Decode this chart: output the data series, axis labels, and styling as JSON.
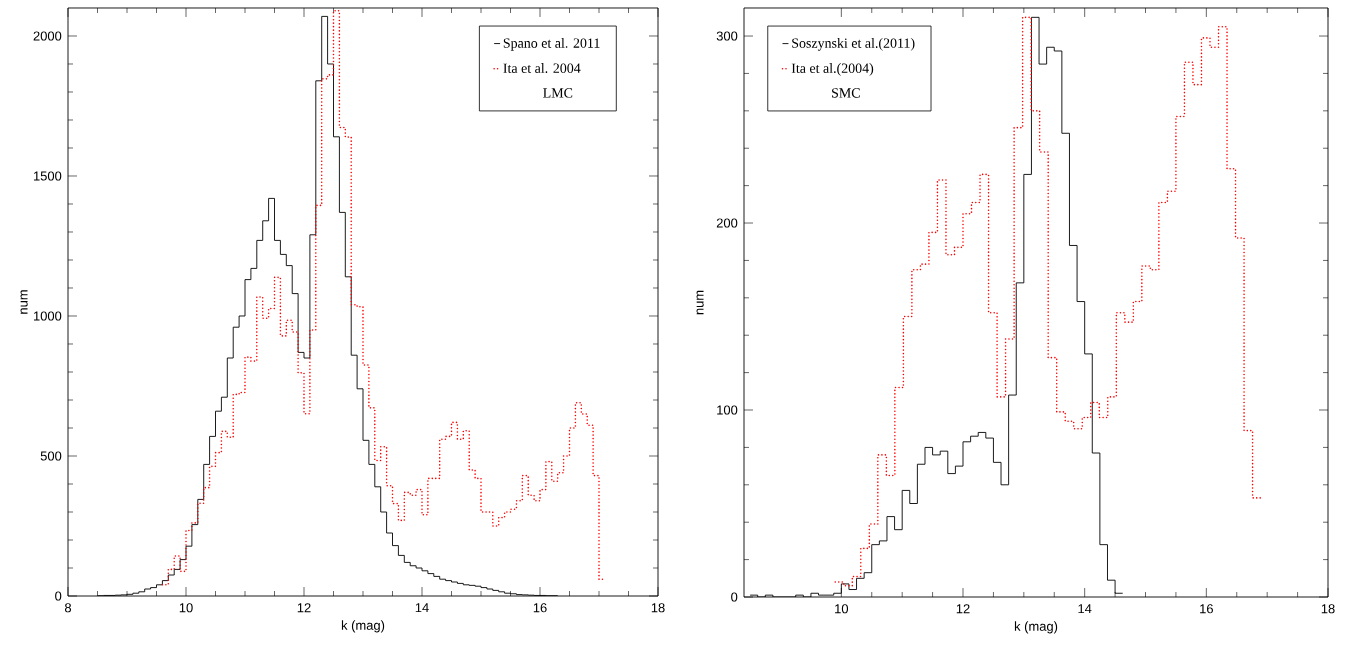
{
  "chart_data": [
    {
      "type": "step",
      "xlabel": "k (mag)",
      "ylabel": "num",
      "xlim": [
        8,
        18
      ],
      "ylim": [
        0,
        2100
      ],
      "xticks": [
        {
          "value": 8,
          "label": "8"
        },
        {
          "value": 10,
          "label": "10"
        },
        {
          "value": 12,
          "label": "12"
        },
        {
          "value": 14,
          "label": "14"
        },
        {
          "value": 16,
          "label": "16"
        },
        {
          "value": 18,
          "label": "18"
        }
      ],
      "yticks": [
        {
          "value": 0,
          "label": "0"
        },
        {
          "value": 500,
          "label": "500"
        },
        {
          "value": 1000,
          "label": "1000"
        },
        {
          "value": 1500,
          "label": "1500"
        },
        {
          "value": 2000,
          "label": "2000"
        }
      ],
      "legend": "top right",
      "annotations": [
        "LMC"
      ],
      "series": [
        {
          "name": "Spano et al. 2011",
          "color": "#000000",
          "line_style": "solid",
          "x": [
            8.5,
            8.6,
            8.7,
            8.8,
            8.9,
            9.0,
            9.1,
            9.2,
            9.3,
            9.4,
            9.5,
            9.6,
            9.7,
            9.8,
            9.9,
            10.0,
            10.1,
            10.2,
            10.3,
            10.4,
            10.5,
            10.6,
            10.7,
            10.8,
            10.9,
            11.0,
            11.1,
            11.2,
            11.3,
            11.4,
            11.5,
            11.6,
            11.7,
            11.8,
            11.9,
            12.0,
            12.1,
            12.2,
            12.3,
            12.4,
            12.5,
            12.6,
            12.7,
            12.8,
            12.9,
            13.0,
            13.1,
            13.2,
            13.3,
            13.4,
            13.5,
            13.6,
            13.7,
            13.8,
            13.9,
            14.0,
            14.1,
            14.2,
            14.3,
            14.4,
            14.5,
            14.6,
            14.7,
            14.8,
            14.9,
            15.0,
            15.1,
            15.2,
            15.3,
            15.4,
            15.5,
            15.6,
            15.7,
            15.8,
            15.9,
            16.0,
            16.1,
            16.2,
            16.3
          ],
          "values": [
            1,
            2,
            2,
            3,
            4,
            6,
            10,
            15,
            25,
            30,
            40,
            55,
            75,
            95,
            130,
            178,
            255,
            345,
            470,
            570,
            660,
            710,
            850,
            960,
            1000,
            1130,
            1170,
            1270,
            1340,
            1420,
            1270,
            1220,
            1180,
            1080,
            870,
            850,
            1290,
            1840,
            2070,
            1900,
            1640,
            1370,
            1140,
            860,
            740,
            556,
            470,
            390,
            300,
            225,
            180,
            145,
            120,
            108,
            100,
            90,
            80,
            70,
            60,
            55,
            50,
            45,
            40,
            38,
            35,
            30,
            25,
            20,
            15,
            10,
            8,
            5,
            4,
            3,
            2,
            2,
            1,
            1,
            1
          ]
        },
        {
          "name": "Ita et al. 2004",
          "color": "#ff0000",
          "line_style": "dotted",
          "x": [
            9.6,
            9.7,
            9.8,
            9.9,
            10.0,
            10.1,
            10.2,
            10.3,
            10.4,
            10.5,
            10.6,
            10.7,
            10.8,
            10.9,
            11.0,
            11.1,
            11.2,
            11.3,
            11.4,
            11.5,
            11.6,
            11.7,
            11.8,
            11.9,
            12.0,
            12.1,
            12.2,
            12.3,
            12.4,
            12.5,
            12.6,
            12.7,
            12.8,
            12.9,
            13.0,
            13.1,
            13.2,
            13.3,
            13.4,
            13.5,
            13.6,
            13.7,
            13.8,
            13.9,
            14.0,
            14.1,
            14.2,
            14.3,
            14.4,
            14.5,
            14.6,
            14.7,
            14.8,
            14.9,
            15.0,
            15.1,
            15.2,
            15.3,
            15.4,
            15.5,
            15.6,
            15.7,
            15.8,
            15.9,
            16.0,
            16.1,
            16.2,
            16.3,
            16.4,
            16.5,
            16.6,
            16.7,
            16.8,
            16.9,
            17.0,
            17.1
          ],
          "values": [
            40,
            95,
            143,
            88,
            234,
            261,
            331,
            387,
            463,
            512,
            588,
            567,
            720,
            727,
            853,
            839,
            1068,
            992,
            1027,
            1138,
            929,
            985,
            943,
            797,
            651,
            950,
            1395,
            1847,
            1861,
            2090,
            1673,
            1639,
            1040,
            1033,
            825,
            672,
            484,
            533,
            394,
            330,
            270,
            370,
            360,
            380,
            290,
            420,
            420,
            560,
            570,
            620,
            560,
            590,
            450,
            420,
            300,
            300,
            250,
            280,
            300,
            310,
            340,
            430,
            360,
            340,
            380,
            480,
            410,
            440,
            500,
            600,
            690,
            650,
            610,
            430,
            60,
            60
          ]
        }
      ]
    },
    {
      "type": "step",
      "xlabel": "k (mag)",
      "ylabel": "num",
      "xlim": [
        8.4,
        18
      ],
      "ylim": [
        0,
        315
      ],
      "xticks": [
        {
          "value": 10,
          "label": "10"
        },
        {
          "value": 12,
          "label": "12"
        },
        {
          "value": 14,
          "label": "14"
        },
        {
          "value": 16,
          "label": "16"
        },
        {
          "value": 18,
          "label": "18"
        }
      ],
      "yticks": [
        {
          "value": 0,
          "label": "0"
        },
        {
          "value": 100,
          "label": "100"
        },
        {
          "value": 200,
          "label": "200"
        },
        {
          "value": 300,
          "label": "300"
        }
      ],
      "legend": "top left",
      "annotations": [
        "SMC"
      ],
      "series": [
        {
          "name": "Soszynski et al.(2011)",
          "color": "#000000",
          "line_style": "solid",
          "x": [
            8.5,
            8.625,
            8.75,
            8.875,
            9,
            9.125,
            9.25,
            9.375,
            9.5,
            9.625,
            9.75,
            9.875,
            10,
            10.125,
            10.25,
            10.375,
            10.5,
            10.625,
            10.75,
            10.875,
            11,
            11.125,
            11.25,
            11.375,
            11.5,
            11.625,
            11.75,
            11.875,
            12,
            12.125,
            12.25,
            12.375,
            12.5,
            12.625,
            12.75,
            12.875,
            13,
            13.125,
            13.25,
            13.375,
            13.5,
            13.625,
            13.75,
            13.875,
            14,
            14.125,
            14.25,
            14.375,
            14.5,
            14.625
          ],
          "values": [
            1,
            0,
            1,
            0,
            0,
            0,
            1,
            0,
            2,
            1,
            1,
            2,
            7,
            4,
            10,
            13,
            28,
            30,
            43,
            36,
            57,
            50,
            71,
            80,
            76,
            78,
            66,
            70,
            83,
            86,
            88,
            85,
            72,
            60,
            108,
            168,
            226,
            310,
            285,
            294,
            292,
            248,
            188,
            158,
            130,
            77,
            28,
            9,
            2,
            2
          ]
        },
        {
          "name": "Ita et al.(2004)",
          "color": "#ff0000",
          "line_style": "dotted",
          "x": [
            9.9,
            10.04,
            10.18,
            10.32,
            10.46,
            10.6,
            10.74,
            10.88,
            11.02,
            11.16,
            11.3,
            11.44,
            11.58,
            11.72,
            11.86,
            12.0,
            12.14,
            12.28,
            12.42,
            12.56,
            12.7,
            12.84,
            12.98,
            13.12,
            13.26,
            13.4,
            13.54,
            13.68,
            13.82,
            13.96,
            14.1,
            14.24,
            14.38,
            14.52,
            14.66,
            14.8,
            14.94,
            15.08,
            15.22,
            15.36,
            15.5,
            15.64,
            15.78,
            15.92,
            16.06,
            16.2,
            16.34,
            16.48,
            16.62,
            16.76,
            16.9
          ],
          "values": [
            8,
            6,
            11,
            26,
            39,
            76,
            65,
            112,
            150,
            175,
            178,
            195,
            223,
            183,
            187,
            205,
            211,
            226,
            152,
            107,
            138,
            251,
            310,
            260,
            238,
            128,
            99,
            94,
            90,
            96,
            104,
            96,
            107,
            152,
            147,
            158,
            177,
            175,
            211,
            217,
            257,
            286,
            274,
            299,
            294,
            305,
            229,
            192,
            89,
            53,
            53
          ]
        }
      ]
    }
  ]
}
